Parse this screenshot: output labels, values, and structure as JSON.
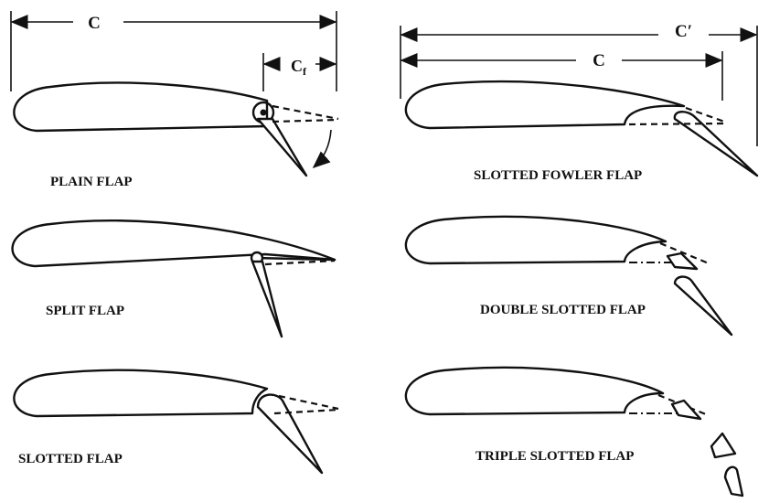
{
  "diagram": {
    "dimensions": {
      "chord_label": "C",
      "flap_chord_label_main": "C",
      "flap_chord_label_sub": "f",
      "extended_chord_label": "C′",
      "fowler_chord_label": "C"
    },
    "captions": {
      "plain": "PLAIN FLAP",
      "split": "SPLIT FLAP",
      "slotted": "SLOTTED FLAP",
      "fowler": "SLOTTED FOWLER FLAP",
      "double": "DOUBLE SLOTTED FLAP",
      "triple": "TRIPLE SLOTTED FLAP"
    }
  }
}
